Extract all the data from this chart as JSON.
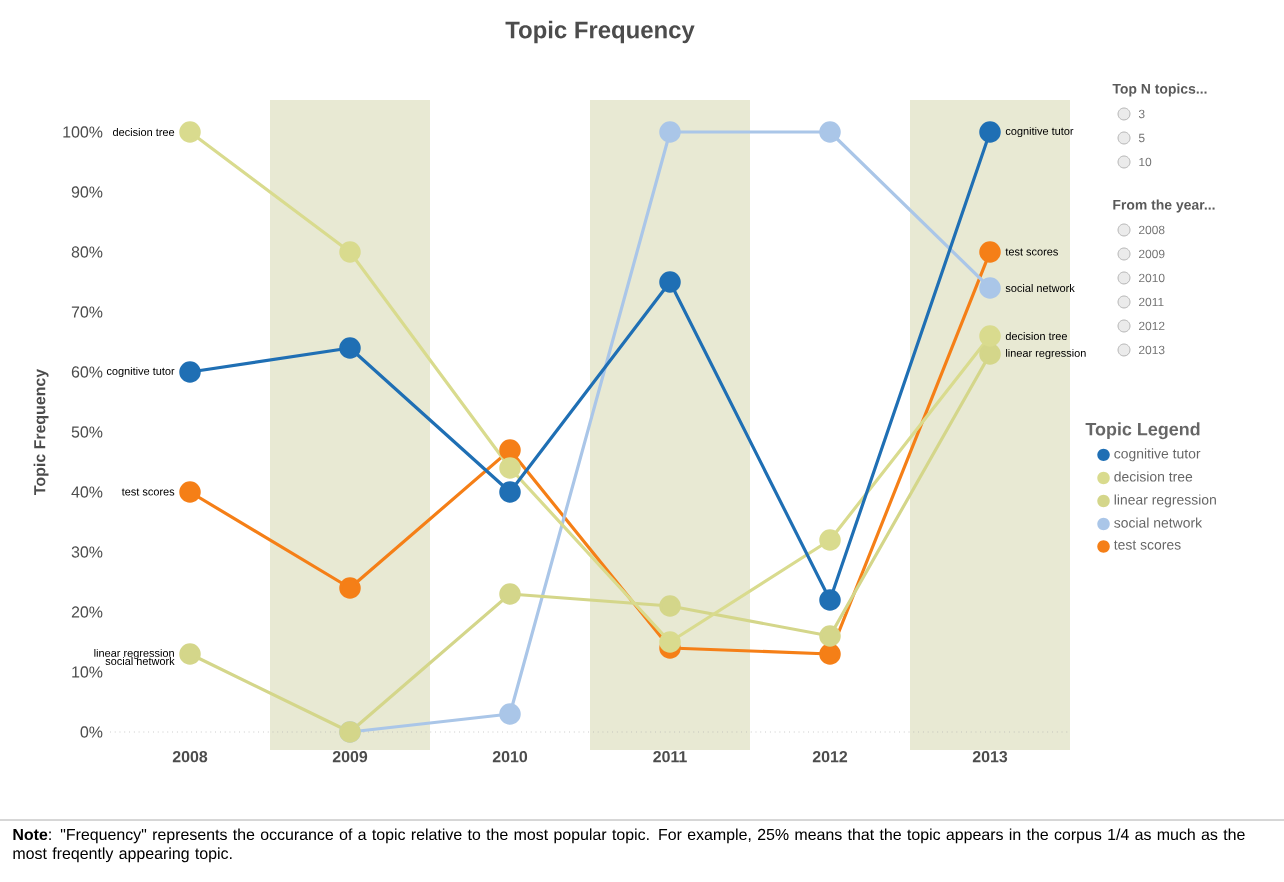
{
  "chart_data": {
    "type": "line",
    "title": "Topic Frequency",
    "ylabel": "Topic Frequency",
    "legend_title": "Topic Legend",
    "categories": [
      "2008",
      "2009",
      "2010",
      "2011",
      "2012",
      "2013"
    ],
    "series": [
      {
        "name": "cognitive tutor",
        "color": "#1f6fb4",
        "values": [
          60,
          64,
          40,
          75,
          22,
          100
        ]
      },
      {
        "name": "decision tree",
        "color": "#d9db8e",
        "values": [
          100,
          80,
          44,
          15,
          32,
          66
        ]
      },
      {
        "name": "linear regression",
        "color": "#d4d68a",
        "values": [
          13,
          0,
          23,
          21,
          16,
          63
        ]
      },
      {
        "name": "social network",
        "color": "#aac6e8",
        "values": [
          null,
          0,
          3,
          100,
          100,
          74
        ]
      },
      {
        "name": "test scores",
        "color": "#f57f17",
        "values": [
          40,
          24,
          47,
          14,
          13,
          80
        ]
      }
    ],
    "ylim": [
      0,
      100
    ],
    "yticks": [
      {
        "value": 0,
        "label": "0%"
      },
      {
        "value": 10,
        "label": "10%"
      },
      {
        "value": 20,
        "label": "20%"
      },
      {
        "value": 30,
        "label": "30%"
      },
      {
        "value": 40,
        "label": "40%"
      },
      {
        "value": 50,
        "label": "50%"
      },
      {
        "value": 60,
        "label": "60%"
      },
      {
        "value": 70,
        "label": "70%"
      },
      {
        "value": 80,
        "label": "80%"
      },
      {
        "value": 90,
        "label": "90%"
      },
      {
        "value": 100,
        "label": "100%"
      }
    ],
    "ref_lines": [
      {
        "axis": "y",
        "value": 0,
        "color": "#b0b0b0",
        "line_style": "dotted"
      }
    ],
    "bands": [
      {
        "axis": "x",
        "from": "2009",
        "to": "2009",
        "color": "#e8e9d3"
      },
      {
        "axis": "x",
        "from": "2011",
        "to": "2011",
        "color": "#e8e9d3"
      },
      {
        "axis": "x",
        "from": "2013",
        "to": "2013",
        "color": "#e8e9d3"
      }
    ],
    "grid": false,
    "legend": "right",
    "marker": "circle",
    "line_style": "solid",
    "annotations": [
      "**Note**: \"Frequency\" represents the occurance of a topic relative to the most popular topic.  For example, 25% means that the topic appears in the corpus 1/4 as much as the most freqently appearing topic.",
      "Top N topics...",
      "3",
      "5",
      "10",
      "From the year...",
      "2008",
      "2009",
      "2010",
      "2011",
      "2012",
      "2013",
      {
        "text": "decision tree",
        "x": "2008",
        "y": 100
      },
      {
        "text": "cognitive tutor",
        "x": "2008",
        "y": 60
      },
      {
        "text": "test scores",
        "x": "2008",
        "y": 40
      },
      {
        "text": "linear regression",
        "x": "2008",
        "y": 13
      },
      {
        "text": "social network",
        "x": "2008",
        "y": 13
      },
      {
        "text": "cognitive tutor",
        "x": "2013",
        "y": 100
      },
      {
        "text": "test scores",
        "x": "2013",
        "y": 80
      },
      {
        "text": "social network",
        "x": "2013",
        "y": 74
      },
      {
        "text": "decision tree",
        "x": "2013",
        "y": 66
      },
      {
        "text": "linear regression",
        "x": "2013",
        "y": 63
      }
    ]
  }
}
